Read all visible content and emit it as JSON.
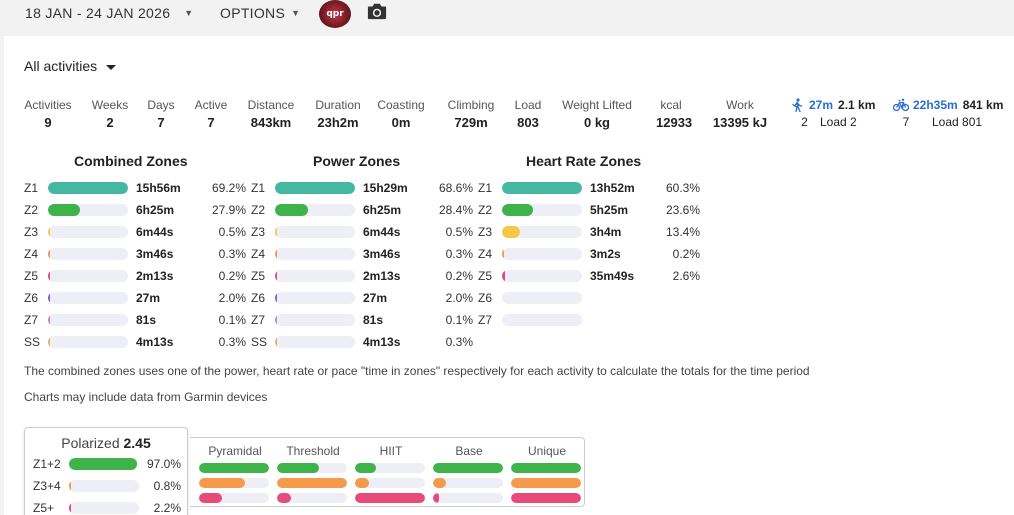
{
  "header": {
    "date_range": "18 JAN - 24 JAN 2026",
    "options_label": "OPTIONS",
    "avatar_text": "qpr",
    "camera_icon": "camera-icon"
  },
  "filter": {
    "label": "All activities"
  },
  "stats": [
    {
      "label": "Activities",
      "value": "9"
    },
    {
      "label": "Weeks",
      "value": "2"
    },
    {
      "label": "Days",
      "value": "7"
    },
    {
      "label": "Active",
      "value": "7"
    },
    {
      "label": "Distance",
      "value": "843km"
    },
    {
      "label": "Duration",
      "value": "23h2m"
    },
    {
      "label": "Coasting",
      "value": "0m"
    },
    {
      "label": "Climbing",
      "value": "729m"
    },
    {
      "label": "Load",
      "value": "803"
    },
    {
      "label": "Weight Lifted",
      "value": "0 kg"
    },
    {
      "label": "kcal",
      "value": "12933"
    },
    {
      "label": "Work",
      "value": "13395 kJ"
    }
  ],
  "sports": [
    {
      "icon": "walk-icon",
      "time": "27m",
      "distance": "2.1 km",
      "count": "2",
      "load": "Load 2"
    },
    {
      "icon": "bike-icon",
      "time": "22h35m",
      "distance": "841 km",
      "count": "7",
      "load": "Load 801"
    }
  ],
  "colors": {
    "z1": "#45b8a2",
    "z2": "#3db34a",
    "z3": "#f5c84a",
    "z4": "#f59a4a",
    "z5": "#e84a7a",
    "z6": "#8a5cd6",
    "z7": "#c08adf",
    "ss": "#f0b060",
    "blue": "#2a6fd1",
    "orange": "#f59a4a",
    "pink": "#e84a7a",
    "green": "#3db34a"
  },
  "combined": {
    "title": "Combined Zones",
    "rows": [
      {
        "zone": "Z1",
        "time": "15h56m",
        "pct": "69.2%",
        "frac": 1.0,
        "color": "#45b8a2"
      },
      {
        "zone": "Z2",
        "time": "6h25m",
        "pct": "27.9%",
        "frac": 0.403,
        "color": "#3db34a"
      },
      {
        "zone": "Z3",
        "time": "6m44s",
        "pct": "0.5%",
        "frac": 0.007,
        "color": "#f5c84a"
      },
      {
        "zone": "Z4",
        "time": "3m46s",
        "pct": "0.3%",
        "frac": 0.004,
        "color": "#f59a4a"
      },
      {
        "zone": "Z5",
        "time": "2m13s",
        "pct": "0.2%",
        "frac": 0.003,
        "color": "#e84a7a"
      },
      {
        "zone": "Z6",
        "time": "27m",
        "pct": "2.0%",
        "frac": 0.029,
        "color": "#8a5cd6"
      },
      {
        "zone": "Z7",
        "time": "81s",
        "pct": "0.1%",
        "frac": 0.002,
        "color": "#c08adf"
      },
      {
        "zone": "SS",
        "time": "4m13s",
        "pct": "0.3%",
        "frac": 0.004,
        "color": "#f0b060"
      }
    ]
  },
  "power": {
    "title": "Power Zones",
    "rows": [
      {
        "zone": "Z1",
        "time": "15h29m",
        "pct": "68.6%",
        "frac": 1.0,
        "color": "#45b8a2"
      },
      {
        "zone": "Z2",
        "time": "6h25m",
        "pct": "28.4%",
        "frac": 0.414,
        "color": "#3db34a"
      },
      {
        "zone": "Z3",
        "time": "6m44s",
        "pct": "0.5%",
        "frac": 0.007,
        "color": "#f5c84a"
      },
      {
        "zone": "Z4",
        "time": "3m46s",
        "pct": "0.3%",
        "frac": 0.004,
        "color": "#f59a4a"
      },
      {
        "zone": "Z5",
        "time": "2m13s",
        "pct": "0.2%",
        "frac": 0.003,
        "color": "#e84a7a"
      },
      {
        "zone": "Z6",
        "time": "27m",
        "pct": "2.0%",
        "frac": 0.029,
        "color": "#8a5cd6"
      },
      {
        "zone": "Z7",
        "time": "81s",
        "pct": "0.1%",
        "frac": 0.002,
        "color": "#c08adf"
      },
      {
        "zone": "SS",
        "time": "4m13s",
        "pct": "0.3%",
        "frac": 0.004,
        "color": "#f0b060"
      }
    ]
  },
  "heart": {
    "title": "Heart Rate Zones",
    "rows": [
      {
        "zone": "Z1",
        "time": "13h52m",
        "pct": "60.3%",
        "frac": 1.0,
        "color": "#45b8a2"
      },
      {
        "zone": "Z2",
        "time": "5h25m",
        "pct": "23.6%",
        "frac": 0.391,
        "color": "#3db34a"
      },
      {
        "zone": "Z3",
        "time": "3h4m",
        "pct": "13.4%",
        "frac": 0.222,
        "color": "#f5c84a"
      },
      {
        "zone": "Z4",
        "time": "3m2s",
        "pct": "0.2%",
        "frac": 0.003,
        "color": "#f59a4a"
      },
      {
        "zone": "Z5",
        "time": "35m49s",
        "pct": "2.6%",
        "frac": 0.043,
        "color": "#e84a7a"
      },
      {
        "zone": "Z6",
        "time": "",
        "pct": "",
        "frac": 0,
        "color": "#8a5cd6"
      },
      {
        "zone": "Z7",
        "time": "",
        "pct": "",
        "frac": 0,
        "color": "#c08adf"
      }
    ]
  },
  "notes": {
    "line1": "The combined zones uses one of the power, heart rate or pace \"time in zones\" respectively for each activity to calculate the totals for the time period",
    "line2": "Charts may include data from Garmin devices"
  },
  "polarized": {
    "label": "Polarized",
    "index": "2.45",
    "rows": [
      {
        "label": "Z1+2",
        "pct": "97.0%",
        "frac": 0.97,
        "color": "#3db34a"
      },
      {
        "label": "Z3+4",
        "pct": "0.8%",
        "frac": 0.008,
        "color": "#f59a4a"
      },
      {
        "label": "Z5+",
        "pct": "2.2%",
        "frac": 0.022,
        "color": "#e84a7a"
      }
    ]
  },
  "types": [
    {
      "name": "Pyramidal",
      "bars": [
        1.0,
        0.66,
        0.33
      ]
    },
    {
      "name": "Threshold",
      "bars": [
        0.6,
        1.0,
        0.2
      ]
    },
    {
      "name": "HIIT",
      "bars": [
        0.3,
        0.2,
        1.0
      ]
    },
    {
      "name": "Base",
      "bars": [
        1.0,
        0.18,
        0.08
      ]
    },
    {
      "name": "Unique",
      "bars": [
        1.0,
        1.0,
        1.0
      ]
    }
  ]
}
